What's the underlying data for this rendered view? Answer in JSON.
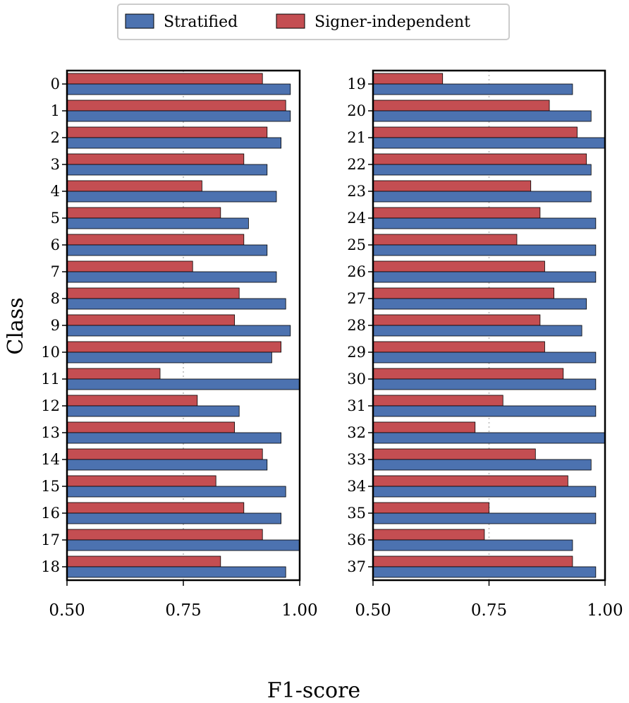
{
  "chart_data": {
    "type": "bar",
    "orientation": "horizontal",
    "xlabel": "F1-score",
    "ylabel": "Class",
    "xlim": [
      0.5,
      1.0
    ],
    "xticks": [
      "0.50",
      "0.75",
      "1.00"
    ],
    "reference_line": 0.75,
    "grid": false,
    "legend": {
      "placement": "top-center",
      "entries": [
        {
          "name": "Stratified",
          "color": "#4c72b0"
        },
        {
          "name": "Signer-independent",
          "color": "#c44e52"
        }
      ]
    },
    "panels": [
      {
        "categories": [
          "0",
          "1",
          "2",
          "3",
          "4",
          "5",
          "6",
          "7",
          "8",
          "9",
          "10",
          "11",
          "12",
          "13",
          "14",
          "15",
          "16",
          "17",
          "18"
        ],
        "series": [
          {
            "name": "Stratified",
            "values": [
              0.98,
              0.98,
              0.96,
              0.93,
              0.95,
              0.89,
              0.93,
              0.95,
              0.97,
              0.98,
              0.94,
              1.0,
              0.87,
              0.96,
              0.93,
              0.97,
              0.96,
              1.0,
              0.97
            ]
          },
          {
            "name": "Signer-independent",
            "values": [
              0.92,
              0.97,
              0.93,
              0.88,
              0.79,
              0.83,
              0.88,
              0.77,
              0.87,
              0.86,
              0.96,
              0.7,
              0.78,
              0.86,
              0.92,
              0.82,
              0.88,
              0.92,
              0.83
            ]
          }
        ]
      },
      {
        "categories": [
          "19",
          "20",
          "21",
          "22",
          "23",
          "24",
          "25",
          "26",
          "27",
          "28",
          "29",
          "30",
          "31",
          "32",
          "33",
          "34",
          "35",
          "36",
          "37"
        ],
        "series": [
          {
            "name": "Stratified",
            "values": [
              0.93,
              0.97,
              1.0,
              0.97,
              0.97,
              0.98,
              0.98,
              0.98,
              0.96,
              0.95,
              0.98,
              0.98,
              0.98,
              1.0,
              0.97,
              0.98,
              0.98,
              0.93,
              0.98
            ]
          },
          {
            "name": "Signer-independent",
            "values": [
              0.65,
              0.88,
              0.94,
              0.96,
              0.84,
              0.86,
              0.81,
              0.87,
              0.89,
              0.86,
              0.87,
              0.91,
              0.78,
              0.72,
              0.85,
              0.92,
              0.75,
              0.74,
              0.93
            ]
          }
        ]
      }
    ]
  }
}
